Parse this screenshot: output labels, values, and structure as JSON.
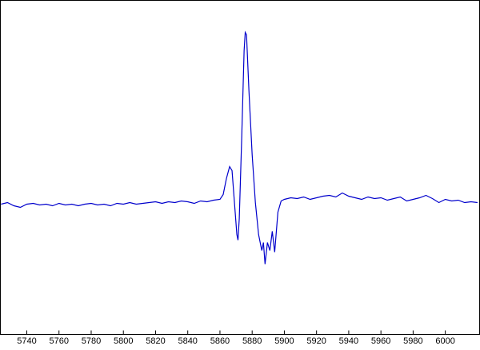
{
  "chart_data": {
    "type": "line",
    "x": [
      5724,
      5728,
      5732,
      5736,
      5740,
      5744,
      5748,
      5752,
      5756,
      5760,
      5764,
      5768,
      5772,
      5776,
      5780,
      5784,
      5788,
      5792,
      5796,
      5800,
      5804,
      5808,
      5812,
      5816,
      5820,
      5824,
      5828,
      5832,
      5836,
      5840,
      5844,
      5848,
      5852,
      5856,
      5860,
      5862,
      5864,
      5866,
      5867.5,
      5869,
      5870.5,
      5871.2,
      5872,
      5873.5,
      5875,
      5875.7,
      5876.5,
      5878,
      5880,
      5882,
      5884,
      5886,
      5887,
      5888,
      5889.5,
      5891,
      5892.5,
      5894,
      5896,
      5898,
      5900,
      5904,
      5908,
      5912,
      5916,
      5920,
      5924,
      5928,
      5932,
      5936,
      5940,
      5944,
      5948,
      5952,
      5956,
      5960,
      5964,
      5968,
      5972,
      5976,
      5980,
      5984,
      5988,
      5992,
      5996,
      6000,
      6004,
      6008,
      6012,
      6016,
      6020
    ],
    "series": [
      {
        "color": "#0000cc",
        "values": [
          -0.01,
          0.0,
          -0.02,
          -0.03,
          -0.01,
          -0.005,
          -0.015,
          -0.01,
          -0.02,
          -0.005,
          -0.015,
          -0.01,
          -0.02,
          -0.01,
          -0.005,
          -0.015,
          -0.01,
          -0.02,
          -0.005,
          -0.01,
          0.0,
          -0.01,
          -0.005,
          0.0,
          0.005,
          -0.005,
          0.005,
          0.0,
          0.01,
          0.005,
          -0.005,
          0.01,
          0.005,
          0.015,
          0.02,
          0.05,
          0.15,
          0.225,
          0.2,
          0.0,
          -0.2,
          -0.235,
          -0.1,
          0.4,
          0.95,
          1.065,
          1.05,
          0.7,
          0.3,
          0.0,
          -0.2,
          -0.3,
          -0.25,
          -0.385,
          -0.25,
          -0.3,
          -0.18,
          -0.31,
          -0.06,
          0.01,
          0.02,
          0.03,
          0.025,
          0.035,
          0.02,
          0.03,
          0.04,
          0.045,
          0.035,
          0.06,
          0.04,
          0.03,
          0.02,
          0.035,
          0.025,
          0.03,
          0.015,
          0.025,
          0.035,
          0.01,
          0.02,
          0.03,
          0.045,
          0.025,
          0.0,
          0.02,
          0.01,
          0.015,
          0.0,
          0.005,
          0.0
        ]
      }
    ],
    "xlim": [
      5723.6,
      6021.3
    ],
    "ylim": [
      -0.825,
      1.265
    ],
    "xticks": [
      5740,
      5760,
      5780,
      5800,
      5820,
      5840,
      5860,
      5880,
      5900,
      5920,
      5940,
      5960,
      5980,
      6000
    ]
  }
}
